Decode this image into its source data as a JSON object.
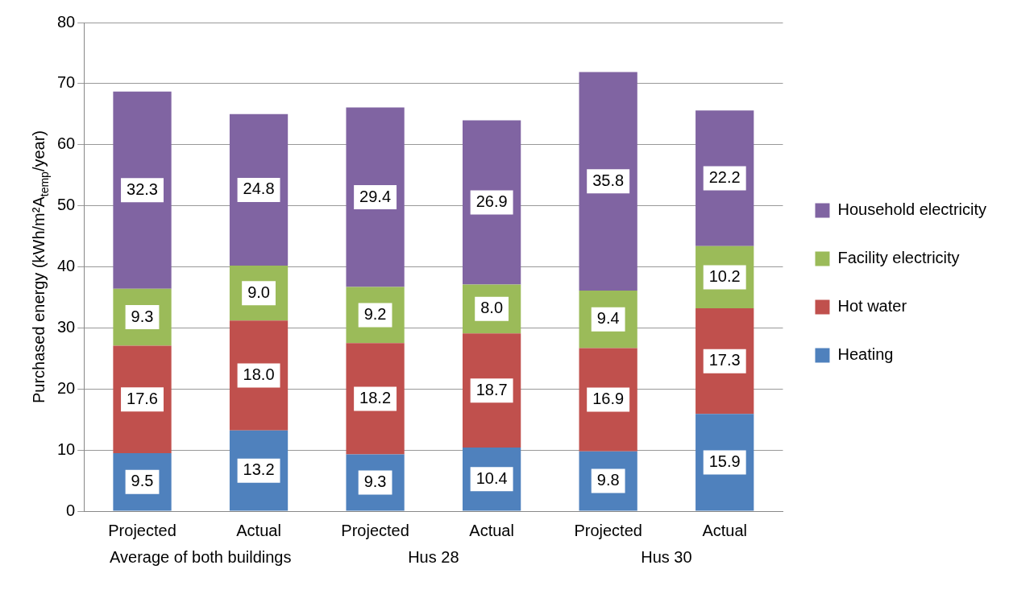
{
  "chart_data": {
    "type": "bar",
    "stacked": true,
    "ylabel": "Purchased energy (kWh/m²A$_{temp}$/year)",
    "categories": [
      "Projected",
      "Actual",
      "Projected",
      "Actual",
      "Projected",
      "Actual"
    ],
    "annotations": [
      "Average of both buildings",
      "Hus 28",
      "Hus 30"
    ],
    "series": [
      {
        "name": "Heating",
        "color": "#4f81bd",
        "values": [
          9.5,
          13.2,
          9.3,
          10.4,
          9.8,
          15.9
        ],
        "value_labels": [
          "9.5",
          "13.2",
          "9.3",
          "10.4",
          "9.8",
          "15.9"
        ]
      },
      {
        "name": "Hot water",
        "color": "#c0504d",
        "values": [
          17.6,
          18.0,
          18.2,
          18.7,
          16.9,
          17.3
        ],
        "value_labels": [
          "17.6",
          "18.0",
          "18.2",
          "18.7",
          "16.9",
          "17.3"
        ]
      },
      {
        "name": "Facility electricity",
        "color": "#9bbb59",
        "values": [
          9.3,
          9.0,
          9.2,
          8.0,
          9.4,
          10.2
        ],
        "value_labels": [
          "9.3",
          "9.0",
          "9.2",
          "8.0",
          "9.4",
          "10.2"
        ]
      },
      {
        "name": "Household electricity",
        "color": "#8064a2",
        "values": [
          32.3,
          24.8,
          29.4,
          26.9,
          35.8,
          22.2
        ],
        "value_labels": [
          "32.3",
          "24.8",
          "29.4",
          "26.9",
          "35.8",
          "22.2"
        ]
      }
    ],
    "ylim": [
      0,
      80
    ],
    "yticks": [
      0,
      10,
      20,
      30,
      40,
      50,
      60,
      70,
      80
    ],
    "grid": "y",
    "legend": "right"
  }
}
